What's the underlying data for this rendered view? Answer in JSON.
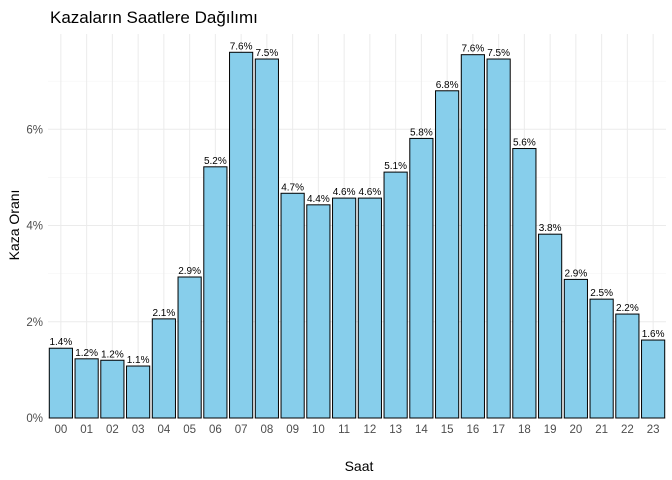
{
  "chart_data": {
    "type": "bar",
    "title": "Kazaların Saatlere Dağılımı",
    "xlabel": "Saat",
    "ylabel": "Kaza Oranı",
    "categories": [
      "00",
      "01",
      "02",
      "03",
      "04",
      "05",
      "06",
      "07",
      "08",
      "09",
      "10",
      "11",
      "12",
      "13",
      "14",
      "15",
      "16",
      "17",
      "18",
      "19",
      "20",
      "21",
      "22",
      "23"
    ],
    "values": [
      1.45,
      1.23,
      1.2,
      1.08,
      2.06,
      2.93,
      5.22,
      7.6,
      7.46,
      4.67,
      4.43,
      4.57,
      4.57,
      5.11,
      5.81,
      6.8,
      7.55,
      7.46,
      5.6,
      3.82,
      2.88,
      2.47,
      2.16,
      1.62
    ],
    "data_labels": [
      "1.4%",
      "1.2%",
      "1.2%",
      "1.1%",
      "2.1%",
      "2.9%",
      "5.2%",
      "7.6%",
      "7.5%",
      "4.7%",
      "4.4%",
      "4.6%",
      "4.6%",
      "5.1%",
      "5.8%",
      "6.8%",
      "7.6%",
      "7.5%",
      "5.6%",
      "3.8%",
      "2.9%",
      "2.5%",
      "2.2%",
      "1.6%"
    ],
    "yticks": [
      0,
      2,
      4,
      6
    ],
    "ytick_labels": [
      "0%",
      "2%",
      "4%",
      "6%"
    ],
    "ylim": [
      0,
      7.98
    ],
    "bar_color": "#87CEEB",
    "bar_edge_color": "#000000",
    "grid": true,
    "legend": "none"
  }
}
